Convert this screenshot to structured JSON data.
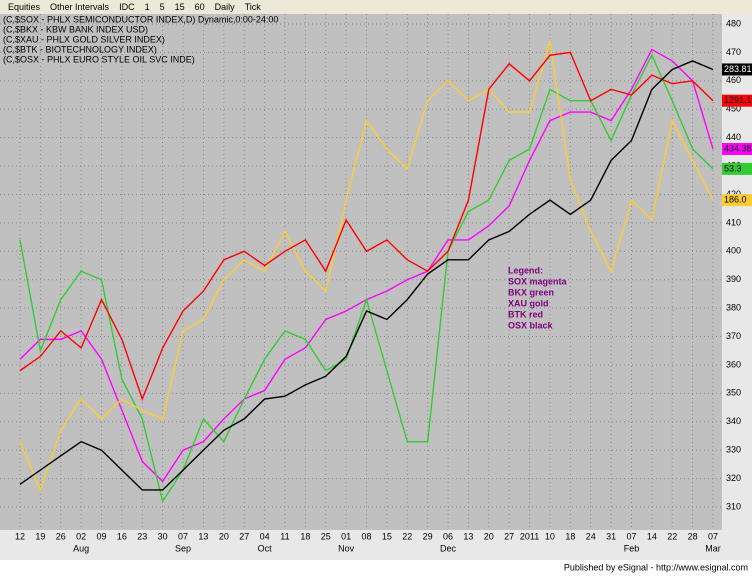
{
  "toolbar": {
    "items": [
      "Equities",
      "Other Intervals",
      "IDC",
      "1",
      "5",
      "15",
      "60",
      "Daily",
      "Tick"
    ]
  },
  "chart_data": {
    "type": "line",
    "title_lines": [
      "(C,$SOX - PHLX SEMICONDUCTOR INDEX,D) Dynamic,0:00-24:00",
      "(C,$BKX - KBW BANK INDEX USD)",
      "(C,$XAU - PHLX GOLD SILVER INDEX)",
      "(C,$BTK - BIOTECHNOLOGY INDEX)",
      "(C,$OSX - PHLX EURO STYLE OIL SVC INDE)"
    ],
    "categories": [
      "12",
      "19",
      "26",
      "02",
      "09",
      "16",
      "23",
      "30",
      "07",
      "13",
      "20",
      "27",
      "04",
      "11",
      "18",
      "25",
      "01",
      "08",
      "15",
      "22",
      "29",
      "06",
      "13",
      "20",
      "27",
      "2011",
      "10",
      "18",
      "24",
      "31",
      "07",
      "14",
      "22",
      "28",
      "07"
    ],
    "month_labels": [
      null,
      null,
      null,
      "Aug",
      null,
      null,
      null,
      null,
      "Sep",
      null,
      null,
      null,
      "Oct",
      null,
      null,
      null,
      "Nov",
      null,
      null,
      null,
      null,
      "Dec",
      null,
      null,
      null,
      null,
      null,
      null,
      null,
      null,
      "Feb",
      null,
      null,
      null,
      "Mar"
    ],
    "series": [
      {
        "name": "SOX",
        "color": "#ff00ff",
        "last_label": "434.38",
        "values": [
          362,
          369,
          369,
          372,
          362,
          344,
          326,
          319,
          330,
          333,
          341,
          348,
          351,
          362,
          366,
          376,
          379,
          383,
          386,
          390,
          393,
          404,
          404,
          409,
          416,
          432,
          446,
          449,
          449,
          446,
          457,
          471,
          467,
          460,
          436
        ]
      },
      {
        "name": "BKX",
        "color": "#33cc33",
        "last_label": "53.3",
        "values": [
          404,
          365,
          383,
          393,
          390,
          355,
          341,
          312,
          323,
          341,
          333,
          348,
          362,
          372,
          369,
          358,
          362,
          383,
          358,
          333,
          333,
          400,
          414,
          418,
          432,
          436,
          457,
          453,
          453,
          439,
          455,
          469,
          453,
          436,
          429
        ]
      },
      {
        "name": "XAU",
        "color": "#ffcc33",
        "last_label": "186.0",
        "values": [
          333,
          316,
          337,
          348,
          341,
          348,
          344,
          341,
          372,
          376,
          390,
          397,
          393,
          407,
          393,
          386,
          418,
          446,
          436,
          429,
          453,
          460,
          453,
          457,
          449,
          449,
          474,
          425,
          407,
          393,
          418,
          411,
          446,
          432,
          418
        ]
      },
      {
        "name": "BTK",
        "color": "#ff0000",
        "last_label": "1291.1",
        "values": [
          358,
          363,
          372,
          366,
          383,
          369,
          348,
          366,
          379,
          386,
          397,
          400,
          395,
          400,
          404,
          393,
          411,
          400,
          404,
          397,
          393,
          400,
          418,
          457,
          466,
          460,
          469,
          470,
          453,
          457,
          455,
          462,
          459,
          460,
          453
        ]
      },
      {
        "name": "OSX",
        "color": "#000000",
        "last_label": "283.81",
        "values": [
          318,
          323,
          328,
          333,
          330,
          323,
          316,
          316,
          323,
          330,
          337,
          341,
          348,
          349,
          353,
          356,
          363,
          379,
          376,
          383,
          392,
          397,
          397,
          404,
          407,
          413,
          418,
          413,
          418,
          432,
          439,
          457,
          464,
          467,
          464
        ]
      }
    ],
    "ylim": [
      310,
      480
    ],
    "yticks": [
      310,
      320,
      330,
      340,
      350,
      360,
      370,
      380,
      390,
      400,
      410,
      420,
      430,
      440,
      450,
      460,
      470,
      480
    ],
    "grid": true,
    "legend": {
      "title": "Legend:",
      "entries": [
        "SOX magenta",
        "BKX green",
        "XAU gold",
        "BTK red",
        "OSX black"
      ]
    },
    "footer": "Published by eSignal - http://www.esignal.com"
  }
}
